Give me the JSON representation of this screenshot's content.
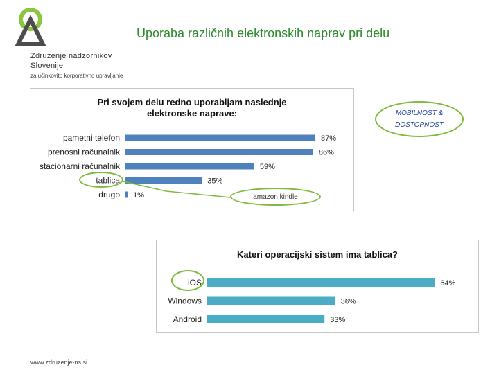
{
  "header": {
    "title": "Uporaba različnih elektronskih naprav pri delu",
    "org_line1": "Združenje nadzornikov",
    "org_line2": "Slovenije",
    "tagline": "za učinkovito korporativno upravljanje"
  },
  "footer": {
    "url": "www.zdruzenje-ns.si"
  },
  "callouts": {
    "mobility": "MOBILNOST & DOSTOPNOST",
    "kindle": "amazon kindle"
  },
  "colors": {
    "bar": "#4f81bd",
    "bar2": "#4bacc6",
    "accent": "#7dbb3c",
    "title": "#2c8a2c"
  },
  "chart_data": [
    {
      "type": "bar",
      "orientation": "horizontal",
      "title": "Pri svojem delu redno uporabljam naslednje elektronske naprave:",
      "categories": [
        "pametni telefon",
        "prenosni računalnik",
        "stacionarni računalnik",
        "tablica",
        "drugo"
      ],
      "values": [
        87,
        86,
        59,
        35,
        1
      ],
      "value_labels": [
        "87%",
        "86%",
        "59%",
        "35%",
        "1%"
      ],
      "unit": "%",
      "xlim": [
        0,
        100
      ],
      "grid": false,
      "legend": "none"
    },
    {
      "type": "bar",
      "orientation": "horizontal",
      "title": "Kateri operacijski sistem ima tablica?",
      "categories": [
        "iOS",
        "Windows",
        "Android"
      ],
      "values": [
        64,
        36,
        33
      ],
      "value_labels": [
        "64%",
        "36%",
        "33%"
      ],
      "unit": "%",
      "xlim": [
        0,
        70
      ],
      "grid": false,
      "legend": "none"
    }
  ]
}
